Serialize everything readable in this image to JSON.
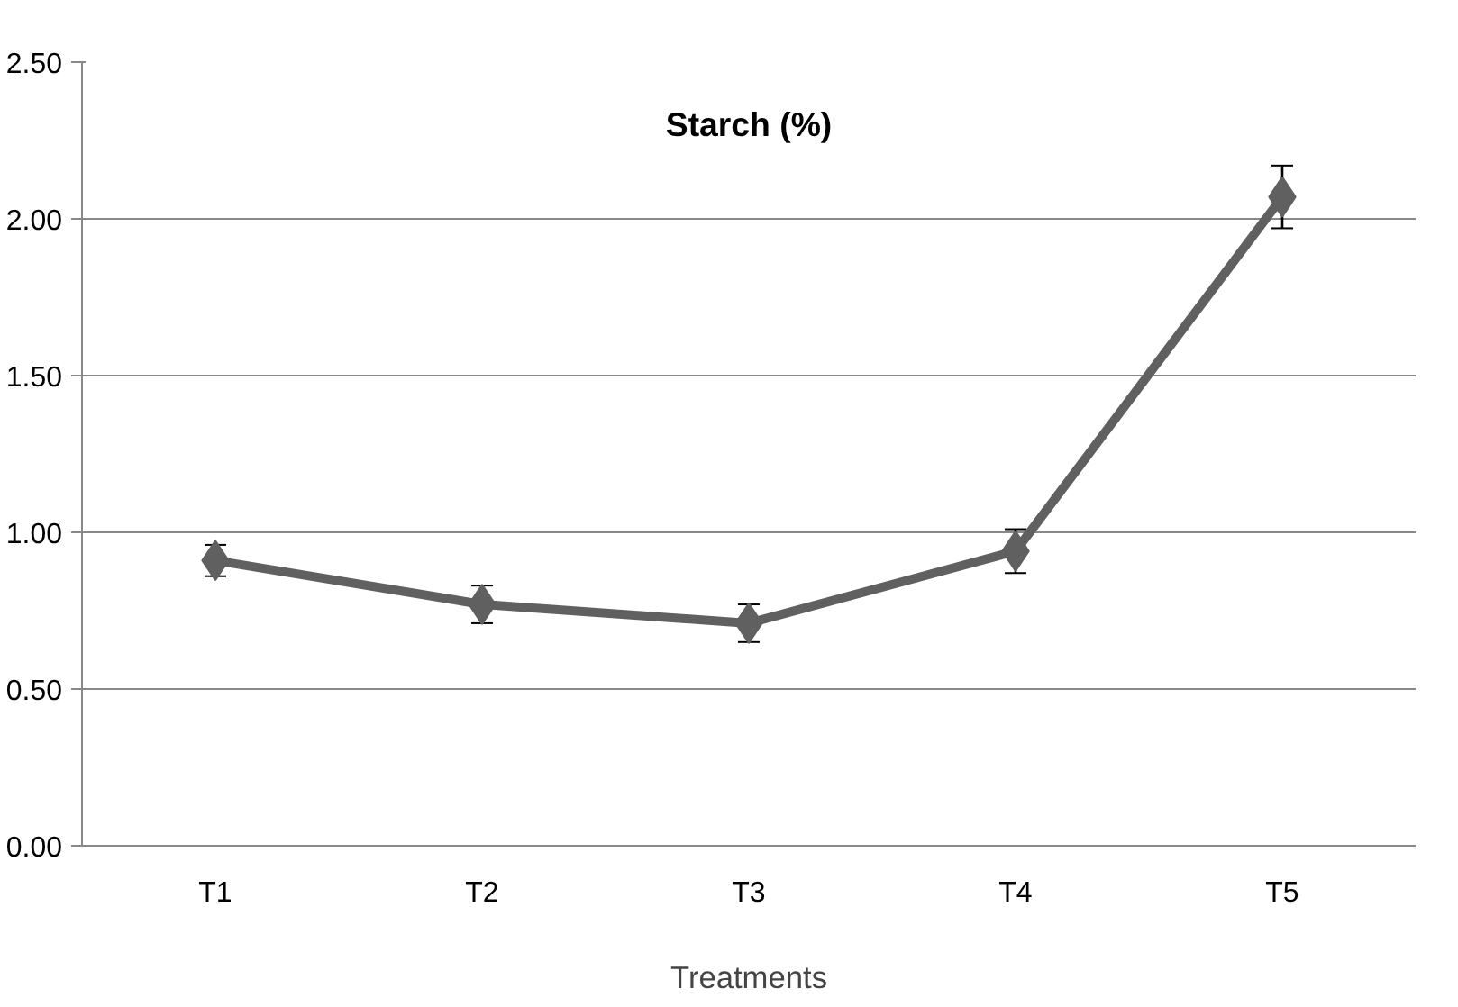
{
  "chart_data": {
    "type": "line",
    "title": "Starch (%)",
    "xlabel": "Treatments",
    "categories": [
      "T1",
      "T2",
      "T3",
      "T4",
      "T5"
    ],
    "series": [
      {
        "color": "#606060",
        "values": [
          0.91,
          0.77,
          0.71,
          0.94,
          2.07
        ],
        "errors": [
          0.05,
          0.06,
          0.06,
          0.07,
          0.1
        ]
      }
    ],
    "ylim": [
      0,
      2.5
    ],
    "yticks": [
      {
        "value": 0,
        "label": "0.00"
      },
      {
        "value": 0.5,
        "label": "0.50"
      },
      {
        "value": 1,
        "label": "1.00"
      },
      {
        "value": 1.5,
        "label": "1.50"
      },
      {
        "value": 2,
        "label": "2.00"
      },
      {
        "value": 2.5,
        "label": "2.50"
      }
    ],
    "grid": "y",
    "marker": "diamond",
    "line_style": "solid"
  }
}
